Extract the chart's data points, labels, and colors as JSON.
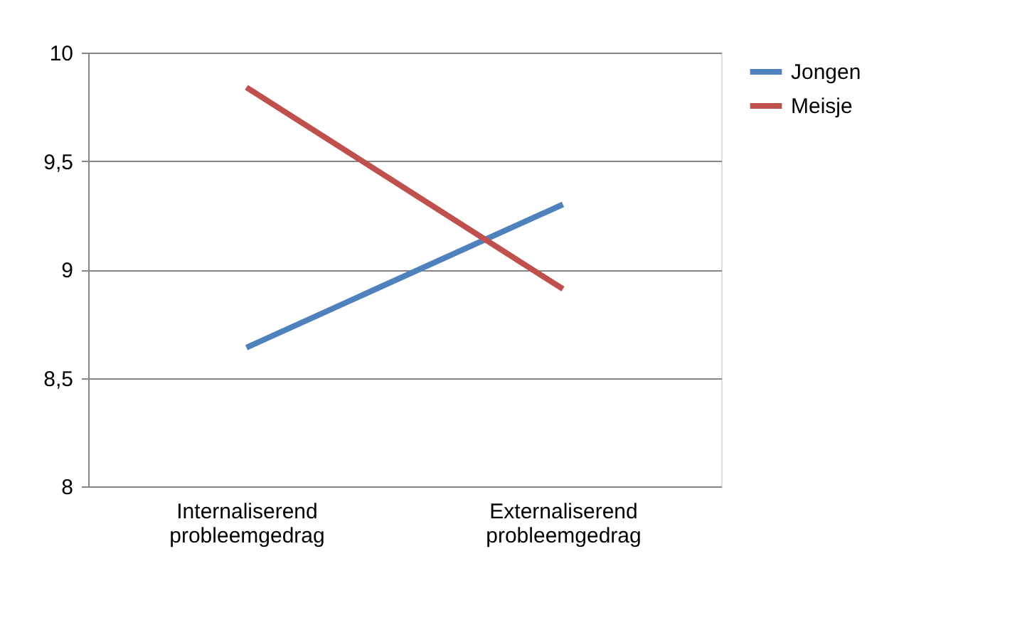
{
  "chart_data": {
    "type": "line",
    "categories": [
      "Internaliserend probleemgedrag",
      "Externaliserend probleemgedrag"
    ],
    "series": [
      {
        "name": "Jongen",
        "color": "#4f81bd",
        "values": [
          8.64,
          9.3
        ]
      },
      {
        "name": "Meisje",
        "color": "#c0504d",
        "values": [
          9.84,
          8.91
        ]
      }
    ],
    "ylim": [
      8,
      10
    ],
    "yticks": [
      8,
      {
        "value": 8.5,
        "label": "8,5"
      },
      9,
      {
        "value": 9.5,
        "label": "9,5"
      },
      10
    ],
    "grid": "y",
    "legend": "right",
    "marker": "none",
    "line_style": "solid"
  }
}
